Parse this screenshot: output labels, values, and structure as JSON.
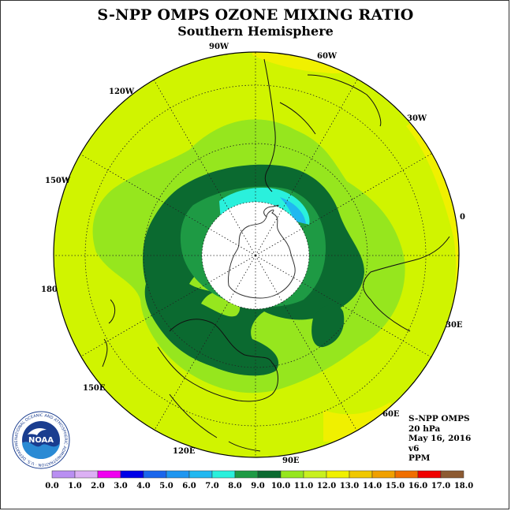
{
  "title": "S-NPP OMPS OZONE MIXING RATIO",
  "subtitle": "Southern Hemisphere",
  "logo_text": "NOAA",
  "logo_ring_text": "NATIONAL OCEANIC AND ATMOSPHERIC ADMINISTRATION · U.S. DEPARTMENT OF COMMERCE",
  "longitude_labels": [
    "90W",
    "60W",
    "30W",
    "0",
    "30E",
    "60E",
    "90E",
    "120E",
    "150E",
    "180",
    "150W",
    "120W"
  ],
  "info": [
    "S-NPP OMPS",
    "20 hPa",
    "May 16, 2016",
    "v6",
    "PPM"
  ],
  "colorbar": {
    "ticks": [
      "0.0",
      "1.0",
      "2.0",
      "3.0",
      "4.0",
      "5.0",
      "6.0",
      "7.0",
      "8.0",
      "9.0",
      "10.0",
      "11.0",
      "12.0",
      "13.0",
      "14.0",
      "15.0",
      "16.0",
      "17.0",
      "18.0"
    ],
    "colors": [
      "#b98ff2",
      "#dcb0f4",
      "#f000f0",
      "#0000e8",
      "#1a66ec",
      "#1e96f0",
      "#20b8f0",
      "#2af0dc",
      "#1e9a44",
      "#0b6a30",
      "#96e61e",
      "#c8f01e",
      "#f0f000",
      "#f0c800",
      "#f0a000",
      "#f06e00",
      "#f00000",
      "#8c5a32"
    ]
  },
  "field_colors": {
    "background": "#d0f400",
    "level_11": "#96e61e",
    "level_9": "#1e9a44",
    "level_10": "#0b6a30",
    "level_8": "#2af0dc",
    "level_7": "#20b8f0",
    "level_13": "#f0f000",
    "no_data": "#ffffff"
  }
}
